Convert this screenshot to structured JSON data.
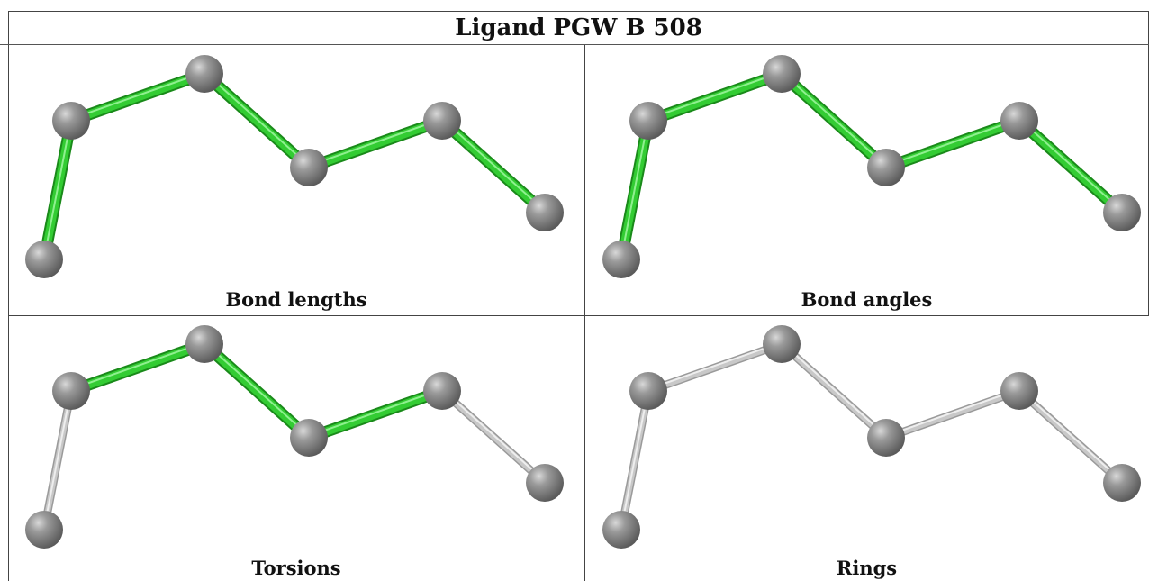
{
  "title": "Ligand PGW B 508",
  "colors": {
    "highlight_bond": "#33cc33",
    "plain_bond": "#c8c8c8",
    "atom": "#808080"
  },
  "panels": [
    {
      "caption": "Bond lengths",
      "bond_colors": [
        "green",
        "green",
        "green",
        "green",
        "green",
        "green"
      ]
    },
    {
      "caption": "Bond angles",
      "bond_colors": [
        "green",
        "green",
        "green",
        "green",
        "green",
        "green"
      ]
    },
    {
      "caption": "Torsions",
      "bond_colors": [
        "gray",
        "green",
        "green",
        "green",
        "green",
        "gray"
      ]
    },
    {
      "caption": "Rings",
      "bond_colors": [
        "gray",
        "gray",
        "gray",
        "gray",
        "gray",
        "gray"
      ]
    }
  ]
}
